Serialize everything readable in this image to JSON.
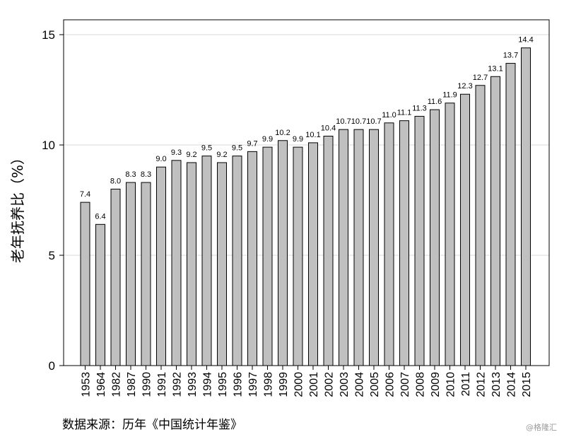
{
  "chart_data": {
    "type": "bar",
    "categories": [
      "1953",
      "1964",
      "1982",
      "1987",
      "1990",
      "1991",
      "1992",
      "1993",
      "1994",
      "1995",
      "1996",
      "1997",
      "1998",
      "1999",
      "2000",
      "2001",
      "2002",
      "2003",
      "2004",
      "2005",
      "2006",
      "2007",
      "2008",
      "2009",
      "2010",
      "2011",
      "2012",
      "2013",
      "2014",
      "2015"
    ],
    "values": [
      7.4,
      6.4,
      8.0,
      8.3,
      8.3,
      9.0,
      9.3,
      9.2,
      9.5,
      9.2,
      9.5,
      9.7,
      9.9,
      10.2,
      9.9,
      10.1,
      10.4,
      10.7,
      10.7,
      10.7,
      11.0,
      11.1,
      11.3,
      11.6,
      11.9,
      12.3,
      12.7,
      13.1,
      13.7,
      14.4
    ],
    "value_labels": [
      "7.4",
      "6.4",
      "8.0",
      "8.3",
      "8.3",
      "9.0",
      "9.3",
      "9.2",
      "9.5",
      "9.2",
      "9.5",
      "9.7",
      "9.9",
      "10.2",
      "9.9",
      "10.1",
      "10.4",
      "10.7",
      "10.7",
      "10.7",
      "11.0",
      "11.1",
      "11.3",
      "11.6",
      "11.9",
      "12.3",
      "12.7",
      "13.1",
      "13.7",
      "14.4"
    ],
    "ylabel": "老年抚养比（%）",
    "xlabel": "",
    "ylim": [
      0,
      15.5
    ],
    "yticks": [
      0,
      5,
      10,
      15
    ],
    "ytick_labels": [
      "0",
      "5",
      "10",
      "15"
    ],
    "grid": true,
    "bar_color": "#c0c0c0",
    "bar_edge_color": "#000000",
    "grid_color": "#d9d9d9"
  },
  "source": "数据来源：历年《中国统计年鉴》",
  "watermark": "@格隆汇"
}
